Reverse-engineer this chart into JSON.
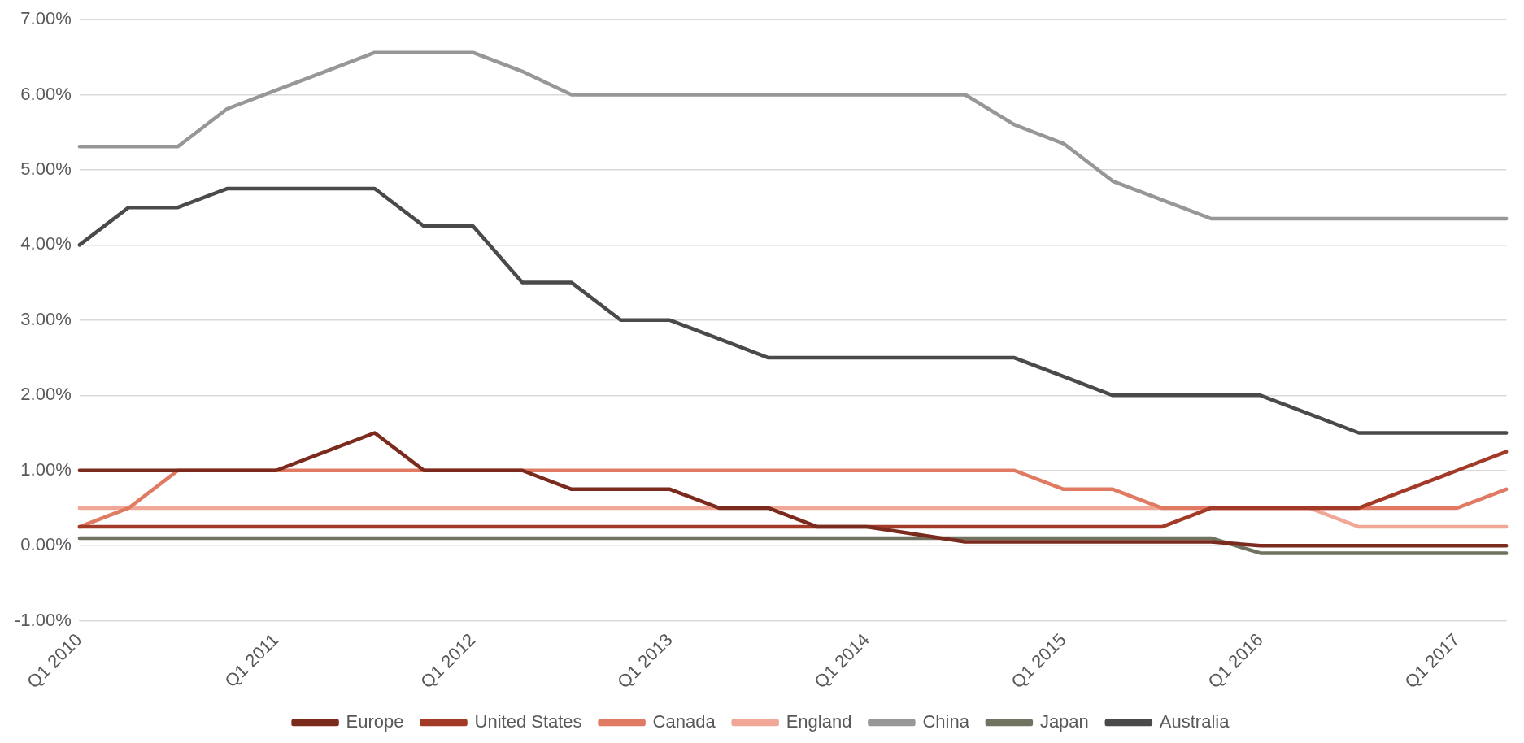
{
  "chart_data": {
    "type": "line",
    "categories": [
      "Q1 2010",
      null,
      null,
      null,
      "Q1 2011",
      null,
      null,
      null,
      "Q1 2012",
      null,
      null,
      null,
      "Q1 2013",
      null,
      null,
      null,
      "Q1 2014",
      null,
      null,
      null,
      "Q1 2015",
      null,
      null,
      null,
      "Q1 2016",
      null,
      null,
      null,
      "Q1 2017",
      null
    ],
    "series": [
      {
        "name": "Europe",
        "color": "#7b2a1e",
        "values": [
          1,
          1,
          1,
          1,
          1,
          1.25,
          1.5,
          1,
          1,
          1,
          0.75,
          0.75,
          0.75,
          0.5,
          0.5,
          0.25,
          0.25,
          0.15,
          0.05,
          0.05,
          0.05,
          0.05,
          0.05,
          0.05,
          0,
          0,
          0,
          0,
          0,
          0
        ]
      },
      {
        "name": "United States",
        "color": "#a33a28",
        "values": [
          0.25,
          0.25,
          0.25,
          0.25,
          0.25,
          0.25,
          0.25,
          0.25,
          0.25,
          0.25,
          0.25,
          0.25,
          0.25,
          0.25,
          0.25,
          0.25,
          0.25,
          0.25,
          0.25,
          0.25,
          0.25,
          0.25,
          0.25,
          0.5,
          0.5,
          0.5,
          0.5,
          0.75,
          1,
          1.25
        ]
      },
      {
        "name": "Canada",
        "color": "#e07a62",
        "values": [
          0.25,
          0.5,
          1,
          1,
          1,
          1,
          1,
          1,
          1,
          1,
          1,
          1,
          1,
          1,
          1,
          1,
          1,
          1,
          1,
          1,
          0.75,
          0.75,
          0.5,
          0.5,
          0.5,
          0.5,
          0.5,
          0.5,
          0.5,
          0.75
        ]
      },
      {
        "name": "England",
        "color": "#f0a797",
        "values": [
          0.5,
          0.5,
          0.5,
          0.5,
          0.5,
          0.5,
          0.5,
          0.5,
          0.5,
          0.5,
          0.5,
          0.5,
          0.5,
          0.5,
          0.5,
          0.5,
          0.5,
          0.5,
          0.5,
          0.5,
          0.5,
          0.5,
          0.5,
          0.5,
          0.5,
          0.5,
          0.25,
          0.25,
          0.25,
          0.25
        ]
      },
      {
        "name": "China",
        "color": "#979797",
        "values": [
          5.31,
          5.31,
          5.31,
          5.81,
          6.06,
          6.31,
          6.56,
          6.56,
          6.56,
          6.31,
          6,
          6,
          6,
          6,
          6,
          6,
          6,
          6,
          6,
          5.6,
          5.35,
          4.85,
          4.6,
          4.35,
          4.35,
          4.35,
          4.35,
          4.35,
          4.35,
          4.35
        ]
      },
      {
        "name": "Japan",
        "color": "#6f735f",
        "values": [
          0.1,
          0.1,
          0.1,
          0.1,
          0.1,
          0.1,
          0.1,
          0.1,
          0.1,
          0.1,
          0.1,
          0.1,
          0.1,
          0.1,
          0.1,
          0.1,
          0.1,
          0.1,
          0.1,
          0.1,
          0.1,
          0.1,
          0.1,
          0.1,
          -0.1,
          -0.1,
          -0.1,
          -0.1,
          -0.1,
          -0.1
        ]
      },
      {
        "name": "Australia",
        "color": "#4a4a4a",
        "values": [
          4,
          4.5,
          4.5,
          4.75,
          4.75,
          4.75,
          4.75,
          4.25,
          4.25,
          3.5,
          3.5,
          3,
          3,
          2.75,
          2.5,
          2.5,
          2.5,
          2.5,
          2.5,
          2.5,
          2.25,
          2,
          2,
          2,
          2,
          1.75,
          1.5,
          1.5,
          1.5,
          1.5
        ]
      }
    ],
    "ylim": [
      -1,
      7
    ],
    "yticks": [
      {
        "value": -1,
        "label": "-1.00%"
      },
      {
        "value": 0,
        "label": "0.00%"
      },
      {
        "value": 1,
        "label": "1.00%"
      },
      {
        "value": 2,
        "label": "2.00%"
      },
      {
        "value": 3,
        "label": "3.00%"
      },
      {
        "value": 4,
        "label": "4.00%"
      },
      {
        "value": 5,
        "label": "5.00%"
      },
      {
        "value": 6,
        "label": "6.00%"
      },
      {
        "value": 7,
        "label": "7.00%"
      }
    ],
    "grid": "y",
    "legend": "bottom",
    "marker": "none",
    "line_style": "solid"
  }
}
